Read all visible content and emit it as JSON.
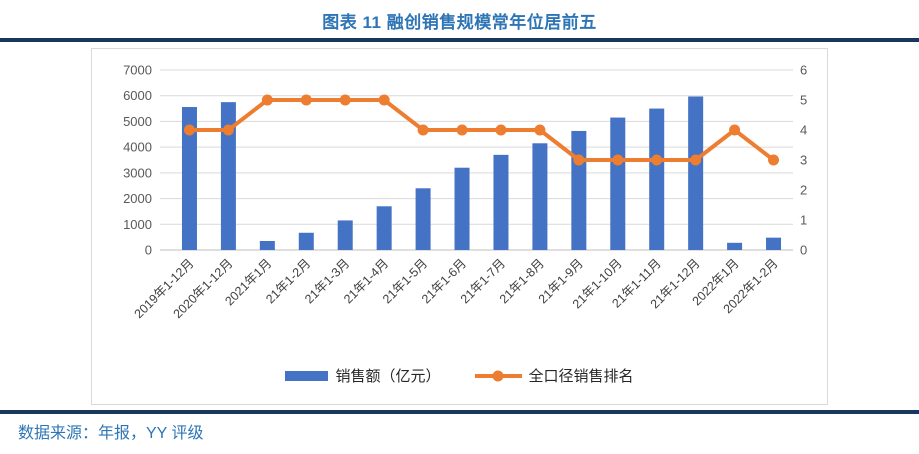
{
  "header": {
    "title": "图表 11 融创销售规模常年位居前五"
  },
  "footer": {
    "source": "数据来源：年报，YY 评级"
  },
  "colors": {
    "bar": "#4472C4",
    "line": "#ED7D31",
    "title": "#2E75B6",
    "rule": "#17375E",
    "grid": "#D9D9D9",
    "axis-line": "#BFBFBF",
    "tick-text": "#595959",
    "xlabel-text": "#404040",
    "legend-text": "#262626"
  },
  "chart_data": {
    "type": "bar+line",
    "title": "图表 11 融创销售规模常年位居前五",
    "categories": [
      "2019年1-12月",
      "2020年1-12月",
      "2021年1月",
      "21年1-2月",
      "21年1-3月",
      "21年1-4月",
      "21年1-5月",
      "21年1-6月",
      "21年1-7月",
      "21年1-8月",
      "21年1-9月",
      "21年1-10月",
      "21年1-11月",
      "21年1-12月",
      "2022年1月",
      "2022年1-2月"
    ],
    "series": [
      {
        "name": "销售额（亿元）",
        "type": "bar",
        "axis": "left",
        "values": [
          5560,
          5750,
          350,
          670,
          1150,
          1700,
          2400,
          3200,
          3700,
          4150,
          4630,
          5150,
          5500,
          5970,
          280,
          480
        ]
      },
      {
        "name": "全口径销售排名",
        "type": "line",
        "axis": "right",
        "values": [
          4,
          4,
          5,
          5,
          5,
          5,
          4,
          4,
          4,
          4,
          3,
          3,
          3,
          3,
          4,
          3
        ]
      }
    ],
    "left_axis": {
      "min": 0,
      "max": 7000,
      "step": 1000
    },
    "right_axis": {
      "min": 0,
      "max": 6,
      "step": 1
    },
    "grid": true,
    "legend_position": "bottom"
  }
}
